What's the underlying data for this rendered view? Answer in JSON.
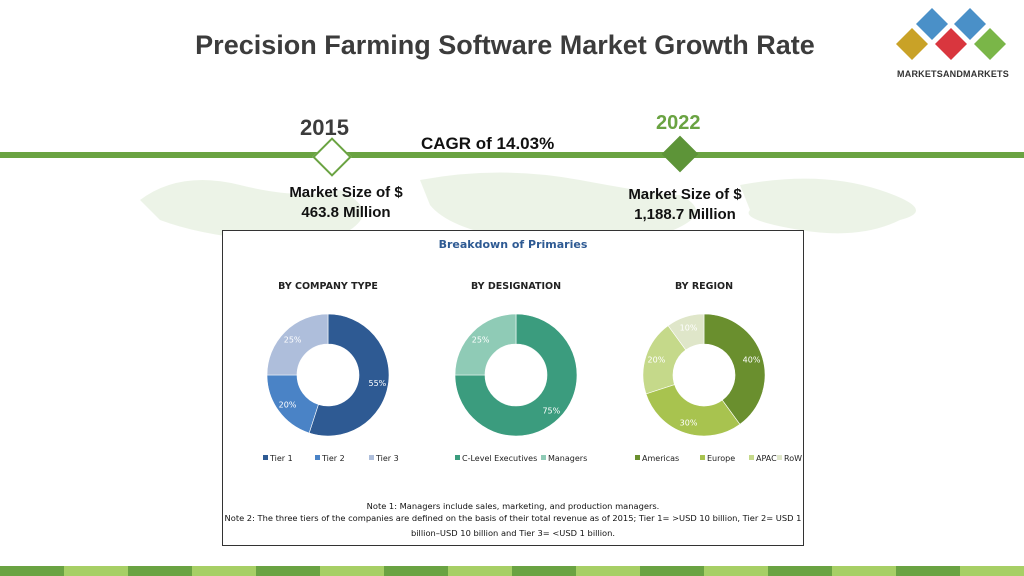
{
  "header": {
    "title": "Precision Farming Software Market Growth Rate",
    "logo_text": "MARKETSANDMARKETS"
  },
  "timeline": {
    "start_year": "2015",
    "end_year": "2022",
    "cagr_label": "CAGR of 14.03%",
    "start_size_line1": "Market Size of $",
    "start_size_line2": "463.8 Million",
    "end_size_line1": "Market Size of $",
    "end_size_line2": "1,188.7 Million"
  },
  "colors": {
    "accent_green": "#6aa342",
    "tier1": "#2e5a93",
    "tier2": "#4a83c6",
    "tier3": "#aebedb",
    "c_level": "#3b9c7e",
    "managers": "#8fcbb6",
    "americas": "#6a8f2e",
    "europe": "#a8c34f",
    "apac": "#c5d98a",
    "row": "#dfe6c9"
  },
  "chart_data": {
    "title": "Breakdown of Primaries",
    "charts": [
      {
        "type": "pie",
        "title": "BY COMPANY TYPE",
        "categories": [
          "Tier 1",
          "Tier 2",
          "Tier 3"
        ],
        "values": [
          55,
          20,
          25
        ],
        "labels": [
          "55%",
          "20%",
          "25%"
        ]
      },
      {
        "type": "pie",
        "title": "BY DESIGNATION",
        "categories": [
          "C-Level Executives",
          "Managers"
        ],
        "values": [
          75,
          25
        ],
        "labels": [
          "75%",
          "25%"
        ]
      },
      {
        "type": "pie",
        "title": "BY REGION",
        "categories": [
          "Americas",
          "Europe",
          "APAC",
          "RoW"
        ],
        "values": [
          40,
          30,
          20,
          10
        ],
        "labels": [
          "40%",
          "30%",
          "20%",
          "10%"
        ]
      }
    ],
    "notes": [
      "Note 1: Managers include sales, marketing, and production managers.",
      "Note 2: The three tiers of the companies are defined on the basis of their total revenue as of 2015; Tier 1= >USD 10 billion, Tier 2= USD 1",
      "billion–USD 10 billion and Tier 3= <USD 1 billion."
    ]
  }
}
